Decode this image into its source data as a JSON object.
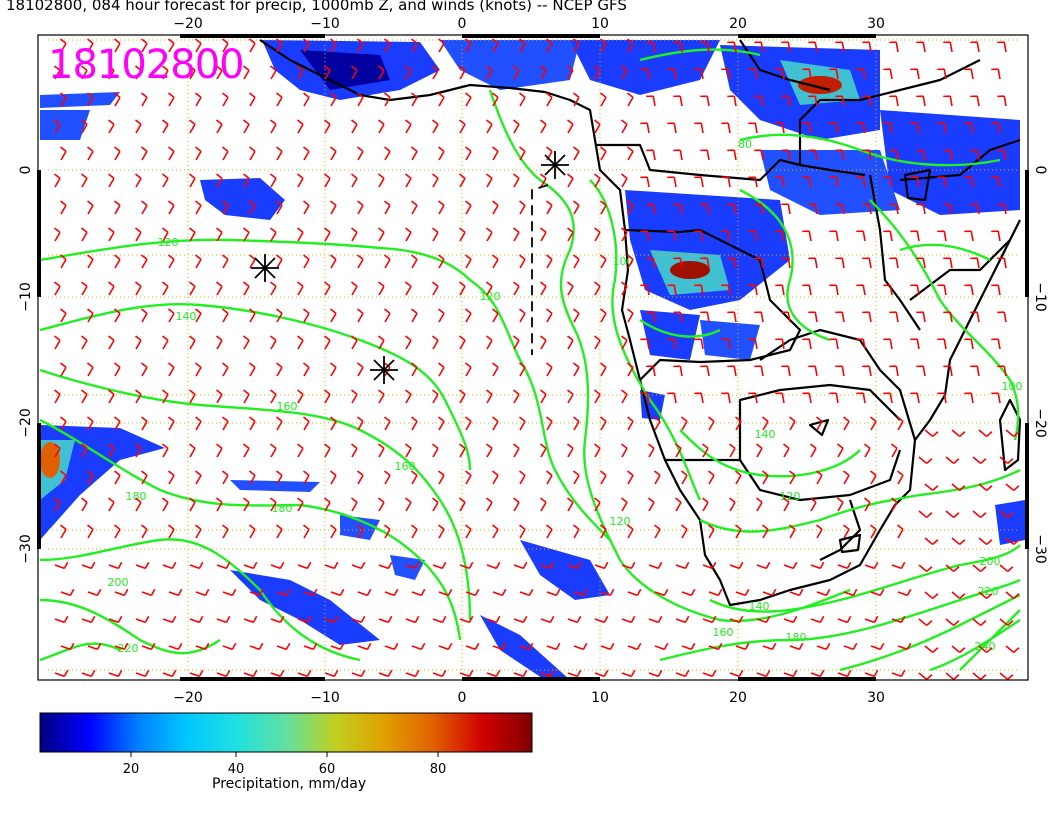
{
  "title": "18102800, 084 hour forecast for precip, 1000mb Z, and winds (knots) -- NCEP GFS",
  "stamp": "18102800",
  "axes": {
    "lon_ticks": [
      "−20",
      "−10",
      "0",
      "10",
      "20",
      "30"
    ],
    "lat_ticks": [
      "0",
      "−10",
      "−20",
      "−30"
    ]
  },
  "contour_labels": [
    "120",
    "140",
    "160",
    "160",
    "180",
    "180",
    "200",
    "220",
    "120",
    "100",
    "80",
    "120",
    "140",
    "160",
    "180",
    "200",
    "220",
    "240",
    "140",
    "120",
    "100"
  ],
  "colorbar": {
    "label": "Precipitation, mm/day",
    "ticks": [
      "20",
      "40",
      "60",
      "80"
    ],
    "colors": [
      "#000080",
      "#0000ff",
      "#0080ff",
      "#00c8ff",
      "#20e0e0",
      "#60e0a0",
      "#c0d020",
      "#e0a000",
      "#e06000",
      "#d00000",
      "#800000"
    ]
  },
  "colors": {
    "contour": "#22ee22",
    "barb": "#ff0000",
    "grid": "#e0b000",
    "coast": "#000000",
    "stamp": "#ff00ff"
  }
}
